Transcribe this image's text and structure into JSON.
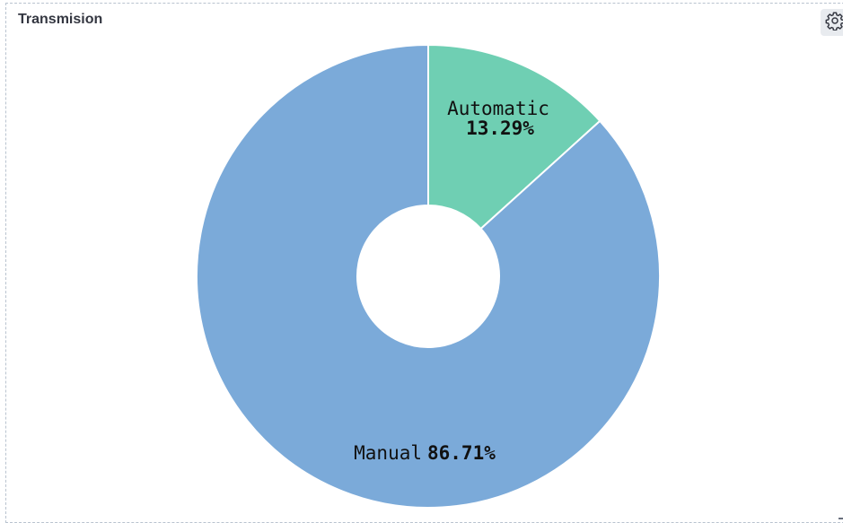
{
  "panel": {
    "title": "Transmision"
  },
  "icons": {
    "settings": "gear-icon"
  },
  "colors": {
    "Manual": "#7baad9",
    "Automatic": "#6fcfb3"
  },
  "chart_data": {
    "type": "pie",
    "donut": true,
    "title": "Transmision",
    "categories": [
      "Automatic",
      "Manual"
    ],
    "values": [
      13.29,
      86.71
    ],
    "labels": [
      "13.29%",
      "86.71%"
    ],
    "unit": "%"
  }
}
